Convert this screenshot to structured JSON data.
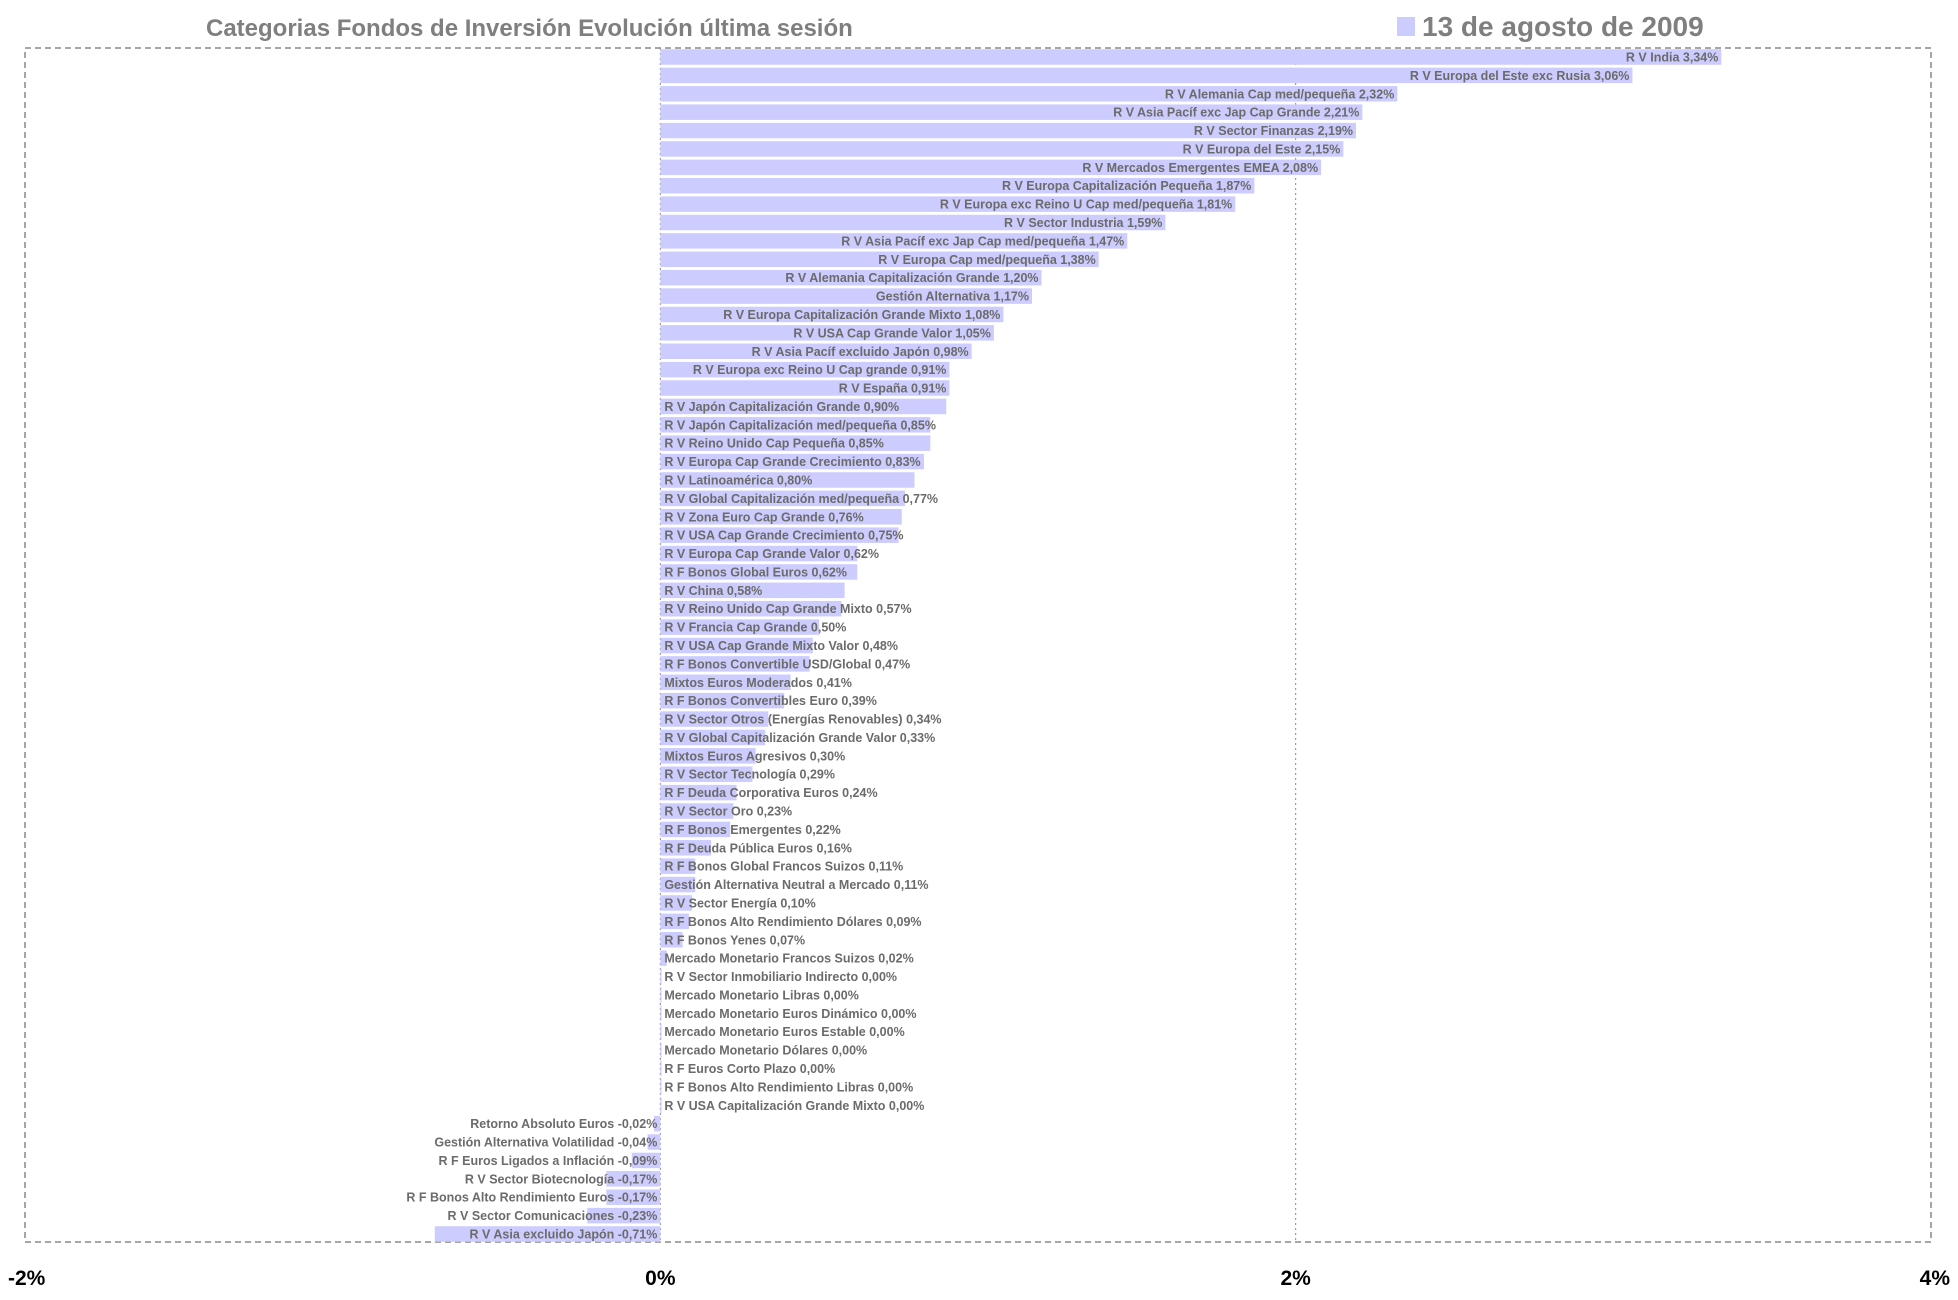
{
  "colors": {
    "bar": "#ccccff",
    "grid": "#888888",
    "label": "#6b6b6b",
    "title": "#7f7f7f",
    "tick": "#000000"
  },
  "chart_data": {
    "type": "bar",
    "orientation": "horizontal",
    "title": "Categorias Fondos de Inversión Evolución última sesión",
    "legend": {
      "position": "top-right"
    },
    "series": [
      {
        "name": "13 de agosto de 2009"
      }
    ],
    "xlim": [
      -2,
      4
    ],
    "xticks": [
      -2,
      0,
      2,
      4
    ],
    "xtick_labels": [
      "-2%",
      "0%",
      "2%",
      "4%"
    ],
    "grid": "vertical dotted",
    "bars": [
      {
        "label": "R V India 3,34%",
        "value": 3.34
      },
      {
        "label": "R V Europa del Este exc Rusia 3,06%",
        "value": 3.06
      },
      {
        "label": "R V Alemania Cap med/pequeña 2,32%",
        "value": 2.32
      },
      {
        "label": "R V Asia Pacíf exc Jap Cap Grande 2,21%",
        "value": 2.21
      },
      {
        "label": "R V Sector Finanzas 2,19%",
        "value": 2.19
      },
      {
        "label": "R V Europa del Este 2,15%",
        "value": 2.15
      },
      {
        "label": "R V Mercados Emergentes EMEA 2,08%",
        "value": 2.08
      },
      {
        "label": "R V Europa Capitalización Pequeña 1,87%",
        "value": 1.87
      },
      {
        "label": "R V Europa exc Reino U Cap med/pequeña 1,81%",
        "value": 1.81
      },
      {
        "label": "R V Sector Industria 1,59%",
        "value": 1.59
      },
      {
        "label": "R V Asia Pacíf exc Jap Cap med/pequeña 1,47%",
        "value": 1.47
      },
      {
        "label": "R V Europa Cap med/pequeña 1,38%",
        "value": 1.38
      },
      {
        "label": "R V Alemania Capitalización Grande 1,20%",
        "value": 1.2
      },
      {
        "label": "Gestión Alternativa 1,17%",
        "value": 1.17
      },
      {
        "label": "R V Europa Capitalización Grande Mixto 1,08%",
        "value": 1.08
      },
      {
        "label": "R V USA Cap Grande Valor 1,05%",
        "value": 1.05
      },
      {
        "label": "R V Asia Pacíf excluido Japón 0,98%",
        "value": 0.98
      },
      {
        "label": "R V Europa exc Reino U Cap grande 0,91%",
        "value": 0.91
      },
      {
        "label": "R V España 0,91%",
        "value": 0.91
      },
      {
        "label": "R V Japón Capitalización Grande 0,90%",
        "value": 0.9
      },
      {
        "label": "R V Japón Capitalización med/pequeña 0,85%",
        "value": 0.85
      },
      {
        "label": "R V Reino Unido Cap Pequeña 0,85%",
        "value": 0.85
      },
      {
        "label": "R V Europa Cap Grande Crecimiento 0,83%",
        "value": 0.83
      },
      {
        "label": "R V Latinoamérica 0,80%",
        "value": 0.8
      },
      {
        "label": "R V Global Capitalización med/pequeña 0,77%",
        "value": 0.77
      },
      {
        "label": "R V Zona Euro Cap Grande 0,76%",
        "value": 0.76
      },
      {
        "label": "R V USA Cap Grande Crecimiento 0,75%",
        "value": 0.75
      },
      {
        "label": "R V Europa Cap Grande Valor 0,62%",
        "value": 0.62
      },
      {
        "label": "R F Bonos Global Euros 0,62%",
        "value": 0.62
      },
      {
        "label": "R V China 0,58%",
        "value": 0.58
      },
      {
        "label": "R V Reino Unido Cap Grande Mixto 0,57%",
        "value": 0.57
      },
      {
        "label": "R V Francia Cap Grande 0,50%",
        "value": 0.5
      },
      {
        "label": "R V USA Cap Grande Mixto Valor 0,48%",
        "value": 0.48
      },
      {
        "label": "R F Bonos Convertible USD/Global 0,47%",
        "value": 0.47
      },
      {
        "label": "Mixtos Euros Moderados 0,41%",
        "value": 0.41
      },
      {
        "label": "R F Bonos Convertibles Euro 0,39%",
        "value": 0.39
      },
      {
        "label": "R V Sector Otros (Energías Renovables) 0,34%",
        "value": 0.34
      },
      {
        "label": "R V Global Capitalización Grande Valor 0,33%",
        "value": 0.33
      },
      {
        "label": "Mixtos Euros Agresivos 0,30%",
        "value": 0.3
      },
      {
        "label": "R V Sector Tecnología 0,29%",
        "value": 0.29
      },
      {
        "label": "R F Deuda Corporativa Euros 0,24%",
        "value": 0.24
      },
      {
        "label": "R V Sector Oro 0,23%",
        "value": 0.23
      },
      {
        "label": "R F Bonos Emergentes 0,22%",
        "value": 0.22
      },
      {
        "label": "R F Deuda Pública Euros 0,16%",
        "value": 0.16
      },
      {
        "label": "R F Bonos Global Francos Suizos 0,11%",
        "value": 0.11
      },
      {
        "label": "Gestión Alternativa Neutral a Mercado 0,11%",
        "value": 0.11
      },
      {
        "label": "R V Sector Energía 0,10%",
        "value": 0.1
      },
      {
        "label": "R F Bonos Alto Rendimiento Dólares 0,09%",
        "value": 0.09
      },
      {
        "label": "R F Bonos Yenes 0,07%",
        "value": 0.07
      },
      {
        "label": "Mercado Monetario Francos Suizos 0,02%",
        "value": 0.02
      },
      {
        "label": "R V Sector Inmobiliario Indirecto 0,00%",
        "value": 0.0
      },
      {
        "label": "Mercado Monetario Libras 0,00%",
        "value": 0.0
      },
      {
        "label": "Mercado Monetario Euros Dinámico 0,00%",
        "value": 0.0
      },
      {
        "label": "Mercado Monetario Euros Estable 0,00%",
        "value": 0.0
      },
      {
        "label": "Mercado Monetario Dólares 0,00%",
        "value": 0.0
      },
      {
        "label": "R F Euros Corto Plazo 0,00%",
        "value": 0.0
      },
      {
        "label": "R F Bonos Alto Rendimiento Libras 0,00%",
        "value": 0.0
      },
      {
        "label": "R V USA Capitalización Grande Mixto 0,00%",
        "value": 0.0
      },
      {
        "label": "Retorno Absoluto Euros -0,02%",
        "value": -0.02
      },
      {
        "label": "Gestión Alternativa Volatilidad -0,04%",
        "value": -0.04
      },
      {
        "label": "R F Euros Ligados a Inflación -0,09%",
        "value": -0.09
      },
      {
        "label": "R V Sector Biotecnología -0,17%",
        "value": -0.17
      },
      {
        "label": "R F Bonos Alto Rendimiento Euros -0,17%",
        "value": -0.17
      },
      {
        "label": "R V Sector Comunicaciones -0,23%",
        "value": -0.23
      },
      {
        "label": "R V Asia excluido Japón -0,71%",
        "value": -0.71
      }
    ]
  }
}
